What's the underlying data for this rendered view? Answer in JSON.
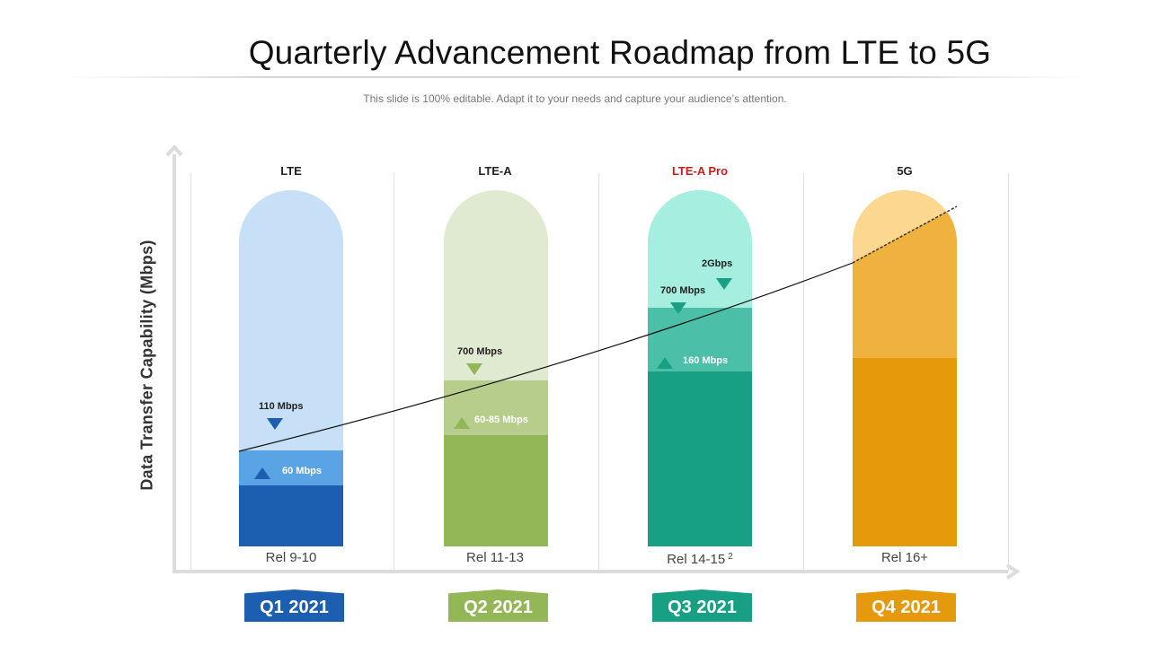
{
  "title": "Quarterly Advancement Roadmap from LTE to 5G",
  "subtitle": "This slide is 100% editable. Adapt it to your needs and capture your audience’s attention.",
  "y_axis_label": "Data Transfer Capability (Mbps)",
  "columns": [
    {
      "header": "LTE",
      "release": "Rel 9-10",
      "release_sup": "",
      "quarter": "Q1 2021",
      "markers": [
        "110 Mbps",
        "60 Mbps"
      ]
    },
    {
      "header": "LTE-A",
      "release": "Rel 11-13",
      "release_sup": "",
      "quarter": "Q2 2021",
      "markers": [
        "700 Mbps",
        "60-85 Mbps"
      ]
    },
    {
      "header": "LTE-A Pro",
      "release": "Rel 14-15",
      "release_sup": "2",
      "quarter": "Q3 2021",
      "markers": [
        "2Gbps",
        "700 Mbps",
        "160 Mbps"
      ]
    },
    {
      "header": "5G",
      "release": "Rel 16+",
      "release_sup": "",
      "quarter": "Q4 2021",
      "markers": []
    }
  ],
  "colors": {
    "lte": [
      "#c7dff7",
      "#5aa4e6",
      "#1c5fb0"
    ],
    "lte_a": [
      "#e0ead0",
      "#b6cd8b",
      "#93b656"
    ],
    "lte_a_pro": [
      "#a5eee0",
      "#4bbfa7",
      "#18a085"
    ],
    "fiveg": [
      "#fbd78f",
      "#efb23f",
      "#e59a0c"
    ],
    "header_highlight": "#cc1b1b",
    "curve": "#111111"
  }
}
